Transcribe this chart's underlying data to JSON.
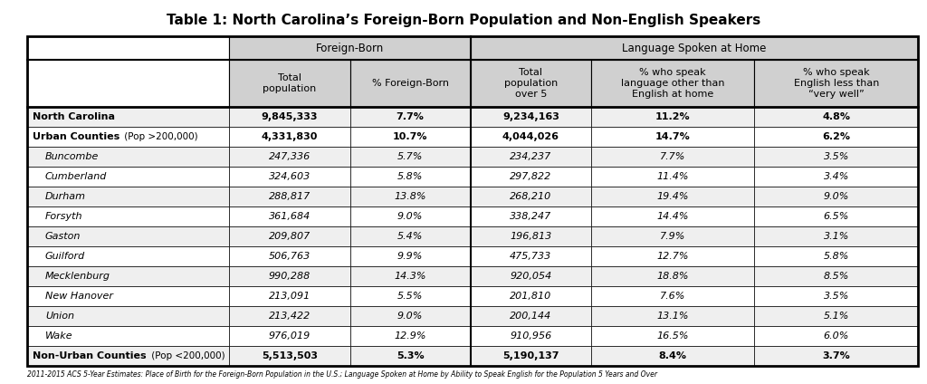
{
  "title": "Table 1: North Carolina’s Foreign-Born Population and Non-English Speakers",
  "footnote": "2011-2015 ACS 5-Year Estimates: Place of Birth for the Foreign-Born Population in the U.S.; Language Spoken at Home by Ability to Speak English for the Population 5 Years and Over",
  "col_group1": "Foreign-Born",
  "col_group2": "Language Spoken at Home",
  "col_headers": [
    "Total\npopulation",
    "% Foreign-Born",
    "Total\npopulation\nover 5",
    "% who speak\nlanguage other than\nEnglish at home",
    "% who speak\nEnglish less than\n“very well”"
  ],
  "rows": [
    {
      "label": "North Carolina",
      "label_style": "bold",
      "values": [
        "9,845,333",
        "7.7%",
        "9,234,163",
        "11.2%",
        "4.8%"
      ],
      "bg": "#efefef"
    },
    {
      "label": "Urban Counties",
      "label_suffix": " (Pop >200,000)",
      "label_style": "bold_mixed",
      "values": [
        "4,331,830",
        "10.7%",
        "4,044,026",
        "14.7%",
        "6.2%"
      ],
      "bg": "#ffffff"
    },
    {
      "label": "Buncombe",
      "label_style": "italic",
      "values": [
        "247,336",
        "5.7%",
        "234,237",
        "7.7%",
        "3.5%"
      ],
      "bg": "#efefef"
    },
    {
      "label": "Cumberland",
      "label_style": "italic",
      "values": [
        "324,603",
        "5.8%",
        "297,822",
        "11.4%",
        "3.4%"
      ],
      "bg": "#ffffff"
    },
    {
      "label": "Durham",
      "label_style": "italic",
      "values": [
        "288,817",
        "13.8%",
        "268,210",
        "19.4%",
        "9.0%"
      ],
      "bg": "#efefef"
    },
    {
      "label": "Forsyth",
      "label_style": "italic",
      "values": [
        "361,684",
        "9.0%",
        "338,247",
        "14.4%",
        "6.5%"
      ],
      "bg": "#ffffff"
    },
    {
      "label": "Gaston",
      "label_style": "italic",
      "values": [
        "209,807",
        "5.4%",
        "196,813",
        "7.9%",
        "3.1%"
      ],
      "bg": "#efefef"
    },
    {
      "label": "Guilford",
      "label_style": "italic",
      "values": [
        "506,763",
        "9.9%",
        "475,733",
        "12.7%",
        "5.8%"
      ],
      "bg": "#ffffff"
    },
    {
      "label": "Mecklenburg",
      "label_style": "italic",
      "values": [
        "990,288",
        "14.3%",
        "920,054",
        "18.8%",
        "8.5%"
      ],
      "bg": "#efefef"
    },
    {
      "label": "New Hanover",
      "label_style": "italic",
      "values": [
        "213,091",
        "5.5%",
        "201,810",
        "7.6%",
        "3.5%"
      ],
      "bg": "#ffffff"
    },
    {
      "label": "Union",
      "label_style": "italic",
      "values": [
        "213,422",
        "9.0%",
        "200,144",
        "13.1%",
        "5.1%"
      ],
      "bg": "#efefef"
    },
    {
      "label": "Wake",
      "label_style": "italic",
      "values": [
        "976,019",
        "12.9%",
        "910,956",
        "16.5%",
        "6.0%"
      ],
      "bg": "#ffffff"
    },
    {
      "label": "Non-Urban Counties",
      "label_suffix": " (Pop <200,000)",
      "label_style": "bold_mixed",
      "values": [
        "5,513,503",
        "5.3%",
        "5,190,137",
        "8.4%",
        "3.7%"
      ],
      "bg": "#efefef"
    }
  ],
  "header_bg": "#d0d0d0",
  "group_header_bg": "#d0d0d0",
  "border_color": "#000000",
  "text_color": "#000000",
  "fig_width": 10.24,
  "fig_height": 4.24,
  "dpi": 100
}
